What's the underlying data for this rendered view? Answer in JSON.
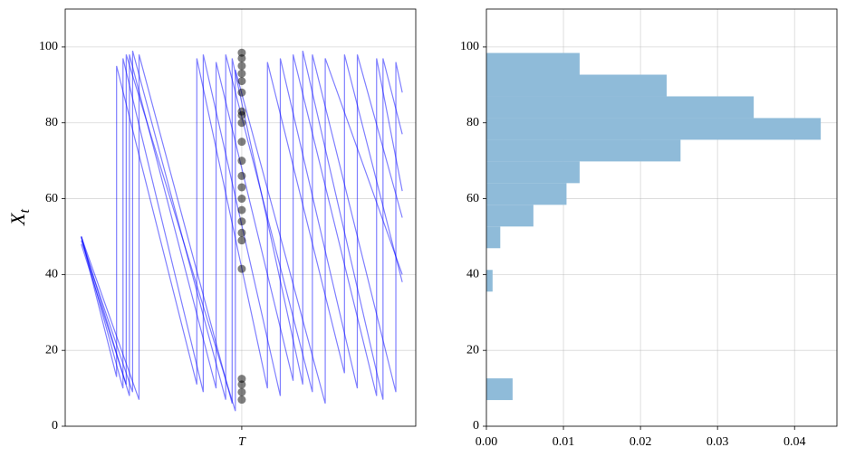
{
  "chart_data": [
    {
      "type": "line",
      "ylabel": "X",
      "ylabel_subscript": "t",
      "xlim": [
        -2.5,
        52.1
      ],
      "xticks": [
        {
          "value": 25,
          "label": "T"
        }
      ],
      "ylim": [
        0,
        110
      ],
      "yticks": [
        0,
        20,
        40,
        60,
        80,
        100
      ],
      "grid": true,
      "series": [
        {
          "color": "#0000ff",
          "x": [
            0,
            6.5,
            6.5,
            19,
            19,
            31,
            31,
            43,
            43,
            50
          ],
          "values": [
            50,
            10,
            97,
            9,
            98,
            8,
            97,
            10,
            98,
            55
          ]
        },
        {
          "color": "#0000ff",
          "x": [
            0,
            7.5,
            7.5,
            21,
            21,
            33,
            33,
            46,
            46,
            50
          ],
          "values": [
            50,
            8,
            98,
            10,
            96,
            12,
            98,
            8,
            97,
            62
          ]
        },
        {
          "color": "#0000ff",
          "x": [
            0,
            8,
            8,
            22.5,
            22.5,
            36,
            36,
            49,
            49,
            50
          ],
          "values": [
            49,
            9,
            99,
            7,
            98,
            9,
            98,
            9,
            96,
            88
          ]
        },
        {
          "color": "#0000ff",
          "x": [
            0,
            5.5,
            5.5,
            18,
            18,
            29,
            29,
            41,
            41,
            50
          ],
          "values": [
            50,
            13,
            95,
            11,
            97,
            10,
            96,
            14,
            98,
            38
          ]
        },
        {
          "color": "#0000ff",
          "x": [
            0,
            9,
            9,
            23.5,
            23.5,
            34.5,
            34.5,
            47,
            47,
            50
          ],
          "values": [
            50,
            7,
            98,
            6,
            97,
            11,
            99,
            7,
            97,
            77
          ]
        },
        {
          "color": "#0000ff",
          "x": [
            0,
            7,
            7,
            24,
            24,
            38,
            38,
            50
          ],
          "values": [
            48,
            11,
            98,
            4,
            94,
            6,
            97,
            40
          ]
        }
      ],
      "markers": {
        "color": "#000000",
        "x": 25,
        "values": [
          98.5,
          97,
          95,
          93,
          91,
          88,
          83,
          82,
          80,
          75,
          70,
          66,
          63,
          60,
          57,
          54,
          51,
          49,
          41.5,
          12.5,
          11,
          9,
          7
        ]
      }
    },
    {
      "type": "histogram",
      "orientation": "horizontal",
      "color": "#8fbbd9",
      "xlim": [
        0,
        0.0455
      ],
      "xticks": [
        {
          "value": 0,
          "label": "0.00"
        },
        {
          "value": 0.01,
          "label": "0.01"
        },
        {
          "value": 0.02,
          "label": "0.02"
        },
        {
          "value": 0.03,
          "label": "0.03"
        },
        {
          "value": 0.04,
          "label": "0.04"
        }
      ],
      "ylim": [
        0,
        110
      ],
      "yticks": [
        0,
        20,
        40,
        60,
        80,
        100
      ],
      "grid": true,
      "bins": [
        6.9,
        12.62,
        18.34,
        24.06,
        29.78,
        35.5,
        41.22,
        46.94,
        52.66,
        58.38,
        64.1,
        69.82,
        75.54,
        81.26,
        86.98,
        92.7,
        98.42
      ],
      "values": [
        0.0034,
        0,
        0,
        0,
        0,
        0.0008,
        0,
        0.0018,
        0.0061,
        0.0104,
        0.0121,
        0.0252,
        0.0434,
        0.0347,
        0.0234,
        0.0121
      ]
    }
  ]
}
